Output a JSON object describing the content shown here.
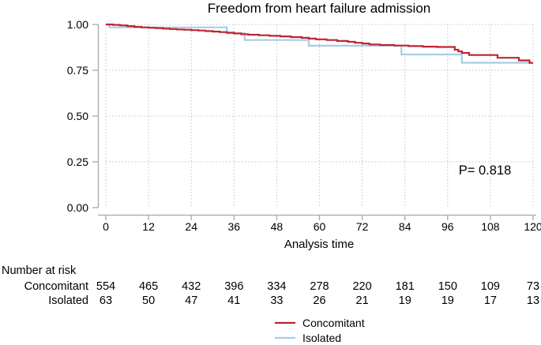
{
  "chart_data": {
    "type": "line",
    "subtype": "kaplan-meier-step",
    "title": "Freedom from heart failure admission",
    "xlabel": "Analysis time",
    "ylabel": "",
    "annotation": "P= 0.818",
    "xlim": [
      0,
      120
    ],
    "ylim": [
      0,
      1
    ],
    "grid": true,
    "legend_position": "bottom-center",
    "x_ticks": [
      0,
      12,
      24,
      36,
      48,
      60,
      72,
      84,
      96,
      108,
      120
    ],
    "y_ticks": [
      {
        "v": 1.0,
        "label": "1.00"
      },
      {
        "v": 0.75,
        "label": "0.75"
      },
      {
        "v": 0.5,
        "label": "0.50"
      },
      {
        "v": 0.25,
        "label": "0.25"
      },
      {
        "v": 0.0,
        "label": "0.00"
      }
    ],
    "series": [
      {
        "name": "Concomitant",
        "color": "#bf2430",
        "steps": [
          [
            0,
            1.0
          ],
          [
            2,
            0.998
          ],
          [
            4,
            0.995
          ],
          [
            6,
            0.991
          ],
          [
            8,
            0.987
          ],
          [
            10,
            0.984
          ],
          [
            12,
            0.982
          ],
          [
            14,
            0.98
          ],
          [
            16,
            0.977
          ],
          [
            18,
            0.975
          ],
          [
            20,
            0.973
          ],
          [
            22,
            0.971
          ],
          [
            24,
            0.969
          ],
          [
            26,
            0.967
          ],
          [
            28,
            0.964
          ],
          [
            30,
            0.961
          ],
          [
            32,
            0.958
          ],
          [
            34,
            0.955
          ],
          [
            36,
            0.951
          ],
          [
            38,
            0.947
          ],
          [
            40,
            0.944
          ],
          [
            43,
            0.941
          ],
          [
            46,
            0.938
          ],
          [
            49,
            0.935
          ],
          [
            52,
            0.931
          ],
          [
            55,
            0.927
          ],
          [
            57,
            0.923
          ],
          [
            59,
            0.919
          ],
          [
            62,
            0.915
          ],
          [
            65,
            0.91
          ],
          [
            68,
            0.905
          ],
          [
            70,
            0.9
          ],
          [
            72,
            0.896
          ],
          [
            74,
            0.891
          ],
          [
            77,
            0.888
          ],
          [
            81,
            0.885
          ],
          [
            85,
            0.882
          ],
          [
            89,
            0.879
          ],
          [
            93,
            0.877
          ],
          [
            98,
            0.862
          ],
          [
            99,
            0.853
          ],
          [
            100,
            0.845
          ],
          [
            102,
            0.833
          ],
          [
            110,
            0.818
          ],
          [
            116,
            0.804
          ],
          [
            119,
            0.79
          ]
        ]
      },
      {
        "name": "Isolated",
        "color": "#a6cde9",
        "steps": [
          [
            0,
            1.0
          ],
          [
            1,
            0.984
          ],
          [
            34,
            0.952
          ],
          [
            39,
            0.915
          ],
          [
            57,
            0.884
          ],
          [
            83,
            0.836
          ],
          [
            100,
            0.791
          ]
        ]
      }
    ],
    "number_at_risk": {
      "header": "Number at risk",
      "times": [
        0,
        12,
        24,
        36,
        48,
        60,
        72,
        84,
        96,
        108,
        120
      ],
      "rows": [
        {
          "label": "Concomitant",
          "counts": [
            554,
            465,
            432,
            396,
            334,
            278,
            220,
            181,
            150,
            109,
            73
          ]
        },
        {
          "label": "Isolated",
          "counts": [
            63,
            50,
            47,
            41,
            33,
            26,
            21,
            19,
            19,
            17,
            13
          ]
        }
      ]
    },
    "style": {
      "axis_color": "#a8a8a8",
      "grid_color": "#c4c4c4",
      "text_color": "#000000",
      "background": "#ffffff"
    }
  }
}
